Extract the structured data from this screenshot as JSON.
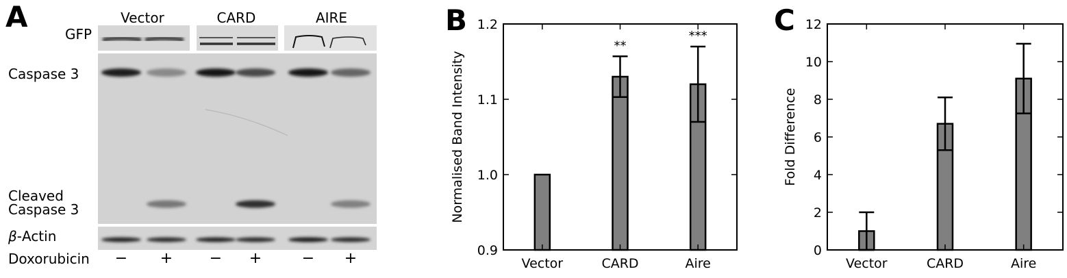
{
  "panel_a": {
    "letter": "A",
    "groups": [
      "Vector",
      "CARD",
      "AIRE"
    ],
    "rows": {
      "gfp": "GFP",
      "caspase3": "Caspase 3",
      "cleaved_line1": "Cleaved",
      "cleaved_line2": "Caspase 3",
      "actin_symbol": "β",
      "actin_rest": "-Actin",
      "treatment": "Doxorubicin"
    },
    "lanes": [
      "−",
      "+",
      "−",
      "+",
      "−",
      "+"
    ],
    "band_levels": {
      "caspase3": [
        0.95,
        0.35,
        1.0,
        0.7,
        1.0,
        0.55
      ],
      "cleaved_caspase3": [
        0.0,
        0.45,
        0.0,
        0.85,
        0.0,
        0.4
      ],
      "actin": [
        0.9,
        0.85,
        0.9,
        0.85,
        0.95,
        0.85
      ]
    }
  },
  "chart_data": [
    {
      "letter": "B",
      "type": "bar",
      "categories": [
        "Vector",
        "CARD",
        "Aire"
      ],
      "values": [
        1.0,
        1.13,
        1.12
      ],
      "errors": [
        0.0,
        0.027,
        0.05
      ],
      "significance": [
        "",
        "**",
        "***"
      ],
      "ylabel": "Normalised Band Intensity",
      "xlabel": "",
      "ylim": [
        0.9,
        1.2
      ],
      "yticks": [
        "0.9",
        "1.0",
        "1.1",
        "1.2"
      ],
      "bar_color": "#808080",
      "grid": false
    },
    {
      "letter": "C",
      "type": "bar",
      "categories": [
        "Vector",
        "CARD",
        "Aire"
      ],
      "values": [
        1.0,
        6.7,
        9.1
      ],
      "errors": [
        1.0,
        1.4,
        1.85
      ],
      "significance": [
        "",
        "",
        ""
      ],
      "ylabel": "Fold Difference",
      "xlabel": "",
      "ylim": [
        0,
        12
      ],
      "yticks": [
        "0",
        "2",
        "4",
        "6",
        "8",
        "10",
        "12"
      ],
      "bar_color": "#808080",
      "grid": false
    }
  ]
}
